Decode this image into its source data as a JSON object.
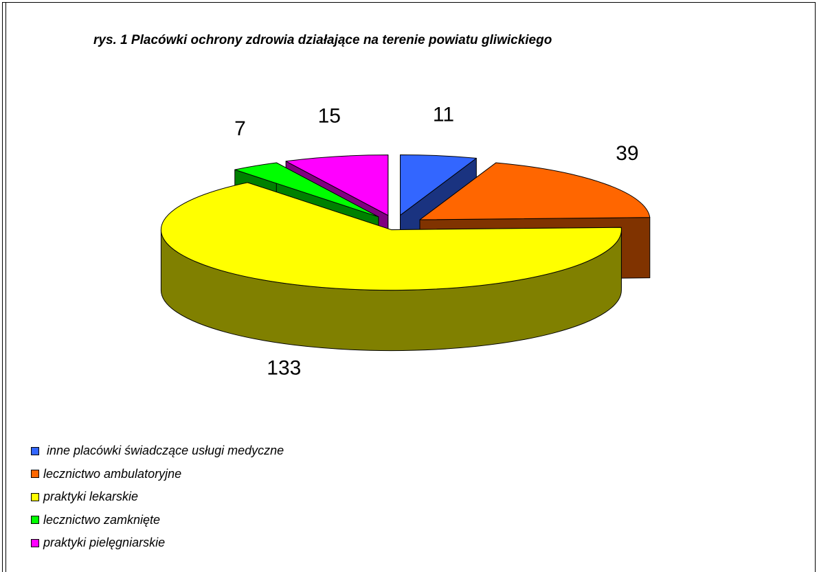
{
  "chart_data": {
    "type": "pie",
    "title": "rys. 1 Placówki ochrony zdrowia działające na terenie powiatu gliwickiego",
    "categories": [
      " inne placówki świadczące usługi medyczne",
      "lecznictwo ambulatoryjne",
      "praktyki lekarskie",
      "lecznictwo zamknięte",
      "praktyki pielęgniarskie"
    ],
    "values": [
      11,
      39,
      133,
      7,
      15
    ],
    "colors": [
      "#3366ff",
      "#ff6600",
      "#ffff00",
      "#00ff00",
      "#ff00ff"
    ],
    "legend": "bottom-left"
  }
}
